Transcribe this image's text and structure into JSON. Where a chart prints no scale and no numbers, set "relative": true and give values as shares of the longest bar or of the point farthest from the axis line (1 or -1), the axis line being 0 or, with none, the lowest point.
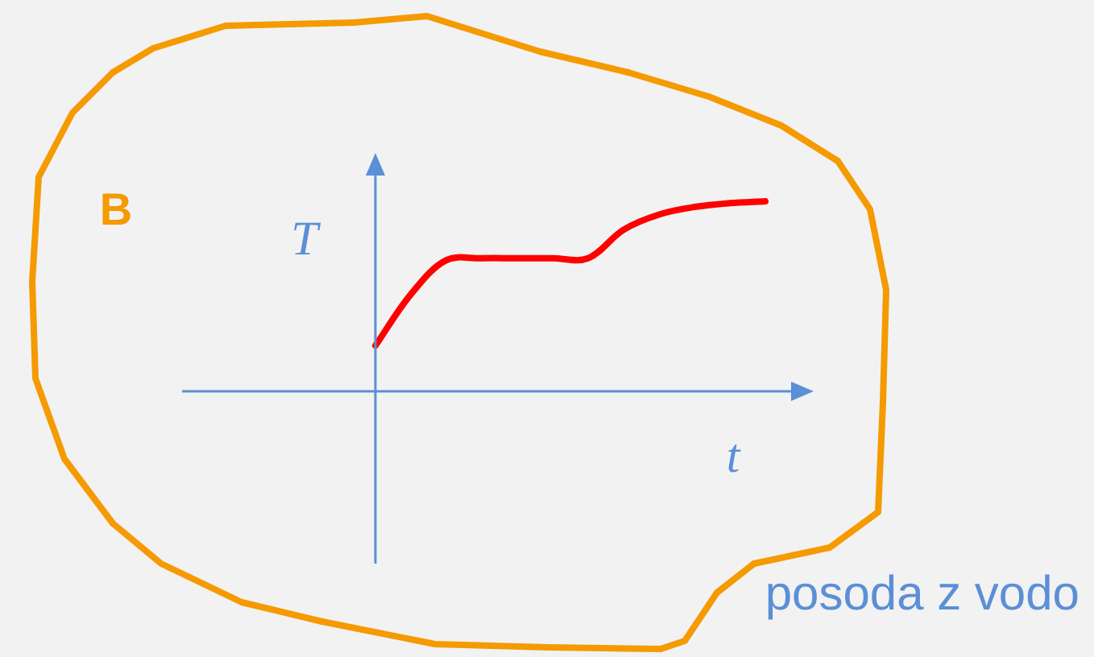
{
  "chart_data": {
    "type": "line",
    "relative": true,
    "xlabel": "t",
    "ylabel": "T",
    "annotations": [
      "B",
      "posoda z vodo"
    ],
    "marker": "none",
    "categories": [
      null,
      null,
      null,
      null,
      null,
      null,
      null,
      null,
      null,
      null,
      null,
      null
    ],
    "series": [
      {
        "color": "#ff0000",
        "values": [
          0.24,
          0.51,
          0.69,
          0.7,
          0.7,
          0.7,
          0.7,
          0.85,
          0.93,
          0.97,
          0.99,
          1
        ]
      }
    ]
  }
}
